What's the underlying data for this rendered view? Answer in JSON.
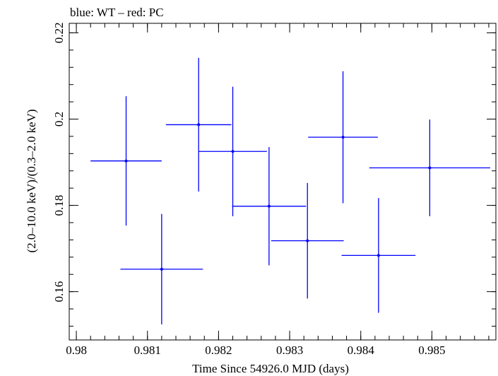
{
  "chart_data": {
    "type": "scatter",
    "title": "blue: WT – red: PC",
    "xlabel": "Time Since 54926.0 MJD (days)",
    "ylabel": "(2.0–10.0 keV)/(0.3–2.0 keV)",
    "xlim": [
      0.9799,
      0.9859
    ],
    "ylim": [
      0.1488,
      0.2222
    ],
    "x_ticks": [
      0.98,
      0.981,
      0.982,
      0.983,
      0.984,
      0.985
    ],
    "x_tick_labels": [
      "0.98",
      "0.981",
      "0.982",
      "0.983",
      "0.984",
      "0.985"
    ],
    "y_ticks": [
      0.16,
      0.18,
      0.2,
      0.22
    ],
    "y_tick_labels": [
      "0.16",
      "0.18",
      "0.2",
      "0.22"
    ],
    "series": [
      {
        "name": "WT",
        "color": "#0000ff",
        "points": [
          {
            "x": 0.9807,
            "y": 0.1903,
            "xerr": 0.0005,
            "yerr": 0.015
          },
          {
            "x": 0.9812,
            "y": 0.1652,
            "xerr": 0.00058,
            "yerr": 0.0128
          },
          {
            "x": 0.98172,
            "y": 0.1987,
            "xerr": 0.00046,
            "yerr": 0.0155
          },
          {
            "x": 0.9822,
            "y": 0.1925,
            "xerr": 0.00048,
            "yerr": 0.015
          },
          {
            "x": 0.98271,
            "y": 0.1798,
            "xerr": 0.00052,
            "yerr": 0.0137
          },
          {
            "x": 0.98325,
            "y": 0.1718,
            "xerr": 0.00051,
            "yerr": 0.0134
          },
          {
            "x": 0.98375,
            "y": 0.1958,
            "xerr": 0.00049,
            "yerr": 0.0153
          },
          {
            "x": 0.98425,
            "y": 0.1684,
            "xerr": 0.00052,
            "yerr": 0.0133
          },
          {
            "x": 0.98497,
            "y": 0.1887,
            "xerr": 0.00085,
            "yerr": 0.0112
          }
        ]
      }
    ]
  }
}
